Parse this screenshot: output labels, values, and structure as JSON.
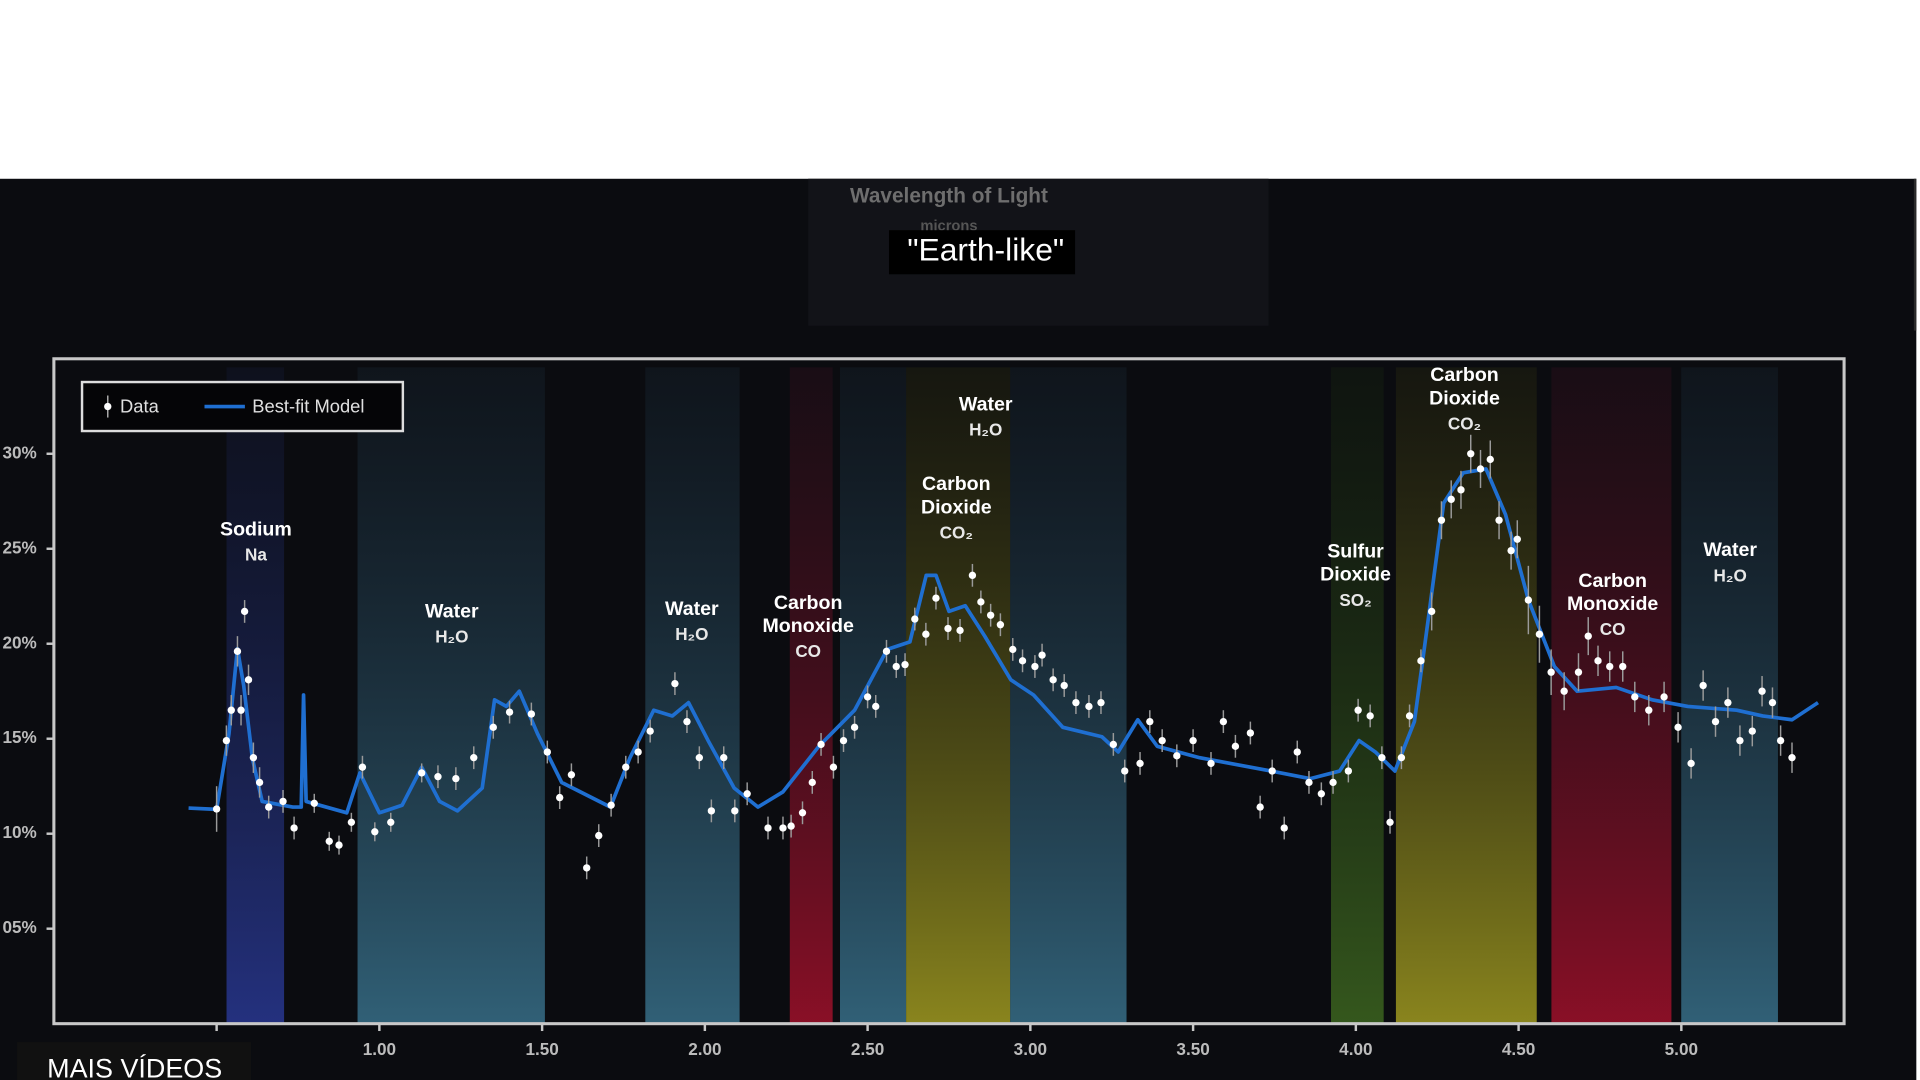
{
  "screen": {
    "caption": "\"Earth-like\"",
    "more_videos": "MAIS VÍDEOS"
  },
  "chart_data": {
    "type": "scatter",
    "xlabel": "Wavelength of Light",
    "xunit": "microns",
    "xlim": [
      0,
      5.5
    ],
    "ylim": [
      0,
      35
    ],
    "xticks": [
      0.5,
      {
        "value": 1,
        "label": "1.00"
      },
      {
        "value": 1.5,
        "label": "1.50"
      },
      {
        "value": 2,
        "label": "2.00"
      },
      {
        "value": 2.5,
        "label": "2.50"
      },
      {
        "value": 3,
        "label": "3.00"
      },
      {
        "value": 3.5,
        "label": "3.50"
      },
      {
        "value": 4,
        "label": "4.00"
      },
      {
        "value": 4.5,
        "label": "4.50"
      },
      {
        "value": 5,
        "label": "5.00"
      }
    ],
    "yticks": [
      {
        "value": 30,
        "label": "30%"
      },
      {
        "value": 25,
        "label": "25%"
      },
      {
        "value": 20,
        "label": "20%"
      },
      {
        "value": 15,
        "label": "15%"
      },
      {
        "value": 10,
        "label": "10%"
      },
      {
        "value": 5,
        "label": "05%"
      }
    ],
    "legend": "upper left",
    "series": [
      {
        "name": "Data",
        "color": "#ffffff",
        "x": [
          0.5,
          0.53,
          0.545,
          0.564,
          0.575,
          0.586,
          0.598,
          0.613,
          0.632,
          0.66,
          0.704,
          0.738,
          0.8,
          0.846,
          0.876,
          0.914,
          0.948,
          0.986,
          1.035,
          1.13,
          1.18,
          1.235,
          1.29,
          1.35,
          1.4,
          1.467,
          1.516,
          1.554,
          1.59,
          1.637,
          1.674,
          1.712,
          1.757,
          1.795,
          1.832,
          1.908,
          1.945,
          1.983,
          2.02,
          2.058,
          2.092,
          2.13,
          2.194,
          2.24,
          2.265,
          2.3,
          2.33,
          2.357,
          2.395,
          2.426,
          2.46,
          2.5,
          2.525,
          2.558,
          2.588,
          2.615,
          2.645,
          2.679,
          2.71,
          2.747,
          2.784,
          2.822,
          2.848,
          2.878,
          2.908,
          2.946,
          2.976,
          3.014,
          3.036,
          3.07,
          3.104,
          3.14,
          3.18,
          3.217,
          3.255,
          3.29,
          3.337,
          3.367,
          3.405,
          3.45,
          3.5,
          3.555,
          3.593,
          3.63,
          3.676,
          3.706,
          3.743,
          3.78,
          3.82,
          3.856,
          3.894,
          3.93,
          3.977,
          4.007,
          4.044,
          4.08,
          4.105,
          4.14,
          4.165,
          4.2,
          4.233,
          4.263,
          4.293,
          4.323,
          4.353,
          4.383,
          4.413,
          4.44,
          4.477,
          4.496,
          4.53,
          4.564,
          4.6,
          4.64,
          4.684,
          4.714,
          4.744,
          4.78,
          4.82,
          4.857,
          4.9,
          4.947,
          4.99,
          5.03,
          5.067,
          5.105,
          5.143,
          5.18,
          5.218,
          5.248,
          5.28,
          5.305,
          5.34
        ],
        "values": [
          11.3,
          14.9,
          16.5,
          19.6,
          16.5,
          21.7,
          18.1,
          14,
          12.7,
          11.4,
          11.7,
          10.3,
          11.6,
          9.6,
          9.4,
          10.6,
          13.5,
          10.1,
          10.6,
          13.2,
          13,
          12.9,
          14,
          15.6,
          16.4,
          16.3,
          14.3,
          11.9,
          13.1,
          8.2,
          9.9,
          11.5,
          13.5,
          14.3,
          15.4,
          17.9,
          15.9,
          14,
          11.2,
          14,
          11.2,
          12.1,
          10.3,
          10.3,
          10.4,
          11.1,
          12.7,
          14.7,
          13.5,
          14.9,
          15.6,
          17.2,
          16.7,
          19.6,
          18.8,
          18.9,
          21.3,
          20.5,
          22.4,
          20.8,
          20.7,
          23.6,
          22.2,
          21.5,
          21,
          19.7,
          19.1,
          18.8,
          19.4,
          18.1,
          17.8,
          16.9,
          16.7,
          16.9,
          14.7,
          13.3,
          13.7,
          15.9,
          14.9,
          14.1,
          14.9,
          13.7,
          15.9,
          14.6,
          15.3,
          11.4,
          13.3,
          10.3,
          14.3,
          12.7,
          12.1,
          12.7,
          13.3,
          16.5,
          16.2,
          14,
          10.6,
          14,
          16.2,
          19.1,
          21.7,
          26.5,
          27.6,
          28.1,
          30,
          29.2,
          29.7,
          26.5,
          24.9,
          25.5,
          22.3,
          20.5,
          18.5,
          17.5,
          18.5,
          20.4,
          19.1,
          18.8,
          18.8,
          17.2,
          16.5,
          17.2,
          15.6,
          13.7,
          17.8,
          15.9,
          16.9,
          14.9,
          15.4,
          17.5,
          16.9,
          14.9,
          14
        ],
        "errors": [
          1.2,
          0.8,
          0.8,
          0.8,
          0.8,
          0.6,
          0.8,
          0.8,
          0.8,
          0.6,
          0.6,
          0.6,
          0.5,
          0.5,
          0.5,
          0.5,
          0.6,
          0.5,
          0.5,
          0.5,
          0.6,
          0.6,
          0.6,
          0.6,
          0.6,
          0.6,
          0.6,
          0.6,
          0.6,
          0.6,
          0.6,
          0.6,
          0.6,
          0.6,
          0.6,
          0.6,
          0.6,
          0.6,
          0.6,
          0.6,
          0.6,
          0.6,
          0.6,
          0.6,
          0.6,
          0.6,
          0.6,
          0.6,
          0.6,
          0.6,
          0.6,
          0.6,
          0.6,
          0.6,
          0.6,
          0.6,
          0.6,
          0.6,
          0.6,
          0.6,
          0.6,
          0.6,
          0.6,
          0.6,
          0.6,
          0.6,
          0.6,
          0.6,
          0.6,
          0.6,
          0.6,
          0.6,
          0.6,
          0.6,
          0.6,
          0.6,
          0.6,
          0.6,
          0.6,
          0.6,
          0.6,
          0.6,
          0.6,
          0.6,
          0.6,
          0.6,
          0.6,
          0.6,
          0.6,
          0.6,
          0.6,
          0.6,
          0.6,
          0.6,
          0.6,
          0.6,
          0.6,
          0.6,
          0.6,
          0.6,
          1,
          1,
          1,
          1,
          1,
          1,
          1,
          1,
          1,
          1,
          1.8,
          1.5,
          1.2,
          1,
          1,
          1,
          0.8,
          0.8,
          0.8,
          0.8,
          0.8,
          0.8,
          0.8,
          0.8,
          0.8,
          0.8,
          0.8,
          0.8,
          0.8,
          0.8,
          0.8,
          0.8,
          0.8
        ]
      },
      {
        "name": "Best-fit Model",
        "color": "#1f6fd1",
        "x": [
          0.414,
          0.5,
          0.538,
          0.564,
          0.583,
          0.61,
          0.64,
          0.734,
          0.76,
          0.767,
          0.775,
          0.9,
          0.94,
          1,
          1.07,
          1.13,
          1.185,
          1.24,
          1.316,
          1.354,
          1.39,
          1.43,
          1.486,
          1.56,
          1.71,
          1.77,
          1.843,
          1.9,
          1.95,
          2.01,
          2.09,
          2.163,
          2.24,
          2.35,
          2.46,
          2.56,
          2.63,
          2.68,
          2.71,
          2.75,
          2.8,
          2.86,
          2.94,
          3.01,
          3.1,
          3.22,
          3.27,
          3.33,
          3.39,
          3.52,
          3.74,
          3.86,
          3.95,
          4.01,
          4.06,
          4.12,
          4.18,
          4.22,
          4.27,
          4.33,
          4.4,
          4.46,
          4.53,
          4.61,
          4.68,
          4.8,
          4.91,
          5.02,
          5.17,
          5.25,
          5.34,
          5.42
        ],
        "values": [
          11.35,
          11.28,
          15.26,
          19.74,
          17.8,
          13.97,
          11.7,
          11.4,
          11.4,
          17.3,
          11.7,
          11.1,
          13.2,
          11.1,
          11.5,
          13.5,
          11.7,
          11.2,
          12.4,
          17.05,
          16.7,
          17.5,
          15.26,
          12.7,
          11.4,
          14,
          16.5,
          16.2,
          16.9,
          14.9,
          12.4,
          11.4,
          12.2,
          14.6,
          16.5,
          19.7,
          20.1,
          23.6,
          23.6,
          21.7,
          22,
          20.4,
          18.1,
          17.3,
          15.6,
          15.1,
          14.3,
          16,
          14.6,
          14,
          13.3,
          12.9,
          13.3,
          14.9,
          14.3,
          13.3,
          15.9,
          21,
          27.4,
          29,
          29.2,
          26.8,
          22.3,
          18.8,
          17.5,
          17.7,
          17.05,
          16.7,
          16.5,
          16.2,
          16,
          16.9
        ]
      }
    ],
    "annotations": [
      {
        "name": [
          "Sodium"
        ],
        "formula": "Na"
      },
      {
        "name": [
          "Water"
        ],
        "formula": "H₂O"
      },
      {
        "name": [
          "Water"
        ],
        "formula": "H₂O"
      },
      {
        "name": [
          "Carbon",
          "Monoxide"
        ],
        "formula": "CO"
      },
      {
        "name": [
          "Carbon",
          "Dioxide"
        ],
        "formula": "CO₂"
      },
      {
        "name": [
          "Water"
        ],
        "formula": "H₂O"
      },
      {
        "name": [
          "Sulfur",
          "Dioxide"
        ],
        "formula": "SO₂"
      },
      {
        "name": [
          "Carbon",
          "Dioxide"
        ],
        "formula": "CO₂"
      },
      {
        "name": [
          "Carbon",
          "Monoxide"
        ],
        "formula": "CO"
      },
      {
        "name": [
          "Water"
        ],
        "formula": "H₂O"
      }
    ]
  }
}
